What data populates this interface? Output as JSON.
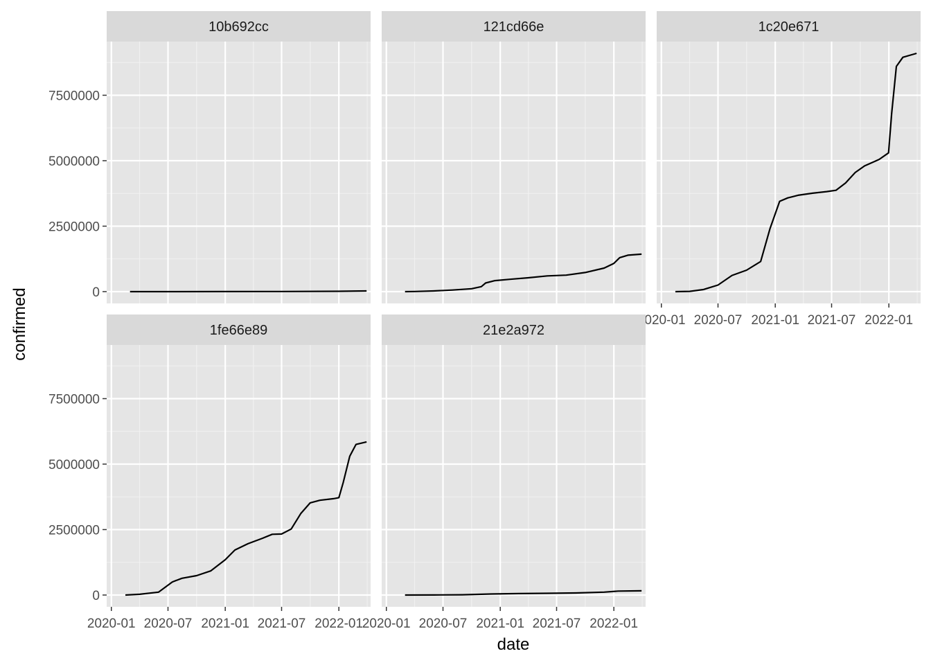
{
  "chart_data": {
    "type": "line",
    "xlabel": "date",
    "ylabel": "confirmed",
    "x_tick_labels": [
      "2020-01",
      "2020-07",
      "2021-01",
      "2021-07",
      "2022-01"
    ],
    "y_tick_labels": [
      "0",
      "2500000",
      "5000000",
      "7500000"
    ],
    "ylim": [
      -450000,
      9550000
    ],
    "xlim": [
      "2019-12-17",
      "2022-04-13"
    ],
    "grid": true,
    "line_color": "#000000",
    "panel_background": "#e5e5e5",
    "strip_background": "#d9d9d9",
    "panels": [
      {
        "name": "10b692cc",
        "series": [
          {
            "x": [
              "2020-03-01",
              "2020-07-01",
              "2021-01-01",
              "2021-07-01",
              "2022-01-01",
              "2022-03-31"
            ],
            "y": [
              0,
              1000,
              3000,
              6000,
              12000,
              25000
            ]
          }
        ]
      },
      {
        "name": "121cd66e",
        "series": [
          {
            "x": [
              "2020-03-01",
              "2020-04-01",
              "2020-06-01",
              "2020-08-01",
              "2020-10-01",
              "2020-11-01",
              "2020-11-15",
              "2020-12-15",
              "2021-02-01",
              "2021-04-01",
              "2021-06-01",
              "2021-08-01",
              "2021-10-01",
              "2021-12-01",
              "2022-01-01",
              "2022-01-20",
              "2022-02-15",
              "2022-03-31"
            ],
            "y": [
              0,
              5000,
              25000,
              60000,
              110000,
              190000,
              330000,
              420000,
              470000,
              530000,
              600000,
              630000,
              730000,
              900000,
              1080000,
              1300000,
              1390000,
              1430000
            ]
          }
        ]
      },
      {
        "name": "1c20e671",
        "series": [
          {
            "x": [
              "2020-02-15",
              "2020-04-01",
              "2020-05-15",
              "2020-07-01",
              "2020-08-15",
              "2020-10-01",
              "2020-11-15",
              "2020-12-15",
              "2021-01-15",
              "2021-02-10",
              "2021-03-15",
              "2021-05-01",
              "2021-06-15",
              "2021-07-15",
              "2021-08-15",
              "2021-09-15",
              "2021-10-15",
              "2021-12-01",
              "2021-12-31",
              "2022-01-10",
              "2022-01-25",
              "2022-02-15",
              "2022-03-31"
            ],
            "y": [
              0,
              10000,
              80000,
              250000,
              620000,
              820000,
              1150000,
              2400000,
              3450000,
              3580000,
              3680000,
              3760000,
              3820000,
              3870000,
              4150000,
              4550000,
              4800000,
              5050000,
              5300000,
              6800000,
              8600000,
              8950000,
              9100000
            ]
          }
        ]
      },
      {
        "name": "1fe66e89",
        "series": [
          {
            "x": [
              "2020-02-15",
              "2020-04-01",
              "2020-06-01",
              "2020-07-15",
              "2020-08-15",
              "2020-10-01",
              "2020-11-15",
              "2021-01-01",
              "2021-02-01",
              "2021-03-15",
              "2021-05-01",
              "2021-06-01",
              "2021-07-01",
              "2021-08-01",
              "2021-09-01",
              "2021-10-01",
              "2021-11-01",
              "2021-12-15",
              "2022-01-01",
              "2022-01-15",
              "2022-02-05",
              "2022-02-25",
              "2022-03-31"
            ],
            "y": [
              0,
              30000,
              110000,
              500000,
              640000,
              740000,
              920000,
              1350000,
              1720000,
              1960000,
              2170000,
              2320000,
              2330000,
              2520000,
              3120000,
              3520000,
              3620000,
              3680000,
              3720000,
              4300000,
              5300000,
              5750000,
              5850000
            ]
          }
        ]
      },
      {
        "name": "21e2a972",
        "series": [
          {
            "x": [
              "2020-03-01",
              "2020-06-01",
              "2020-09-01",
              "2020-12-01",
              "2021-03-01",
              "2021-06-01",
              "2021-09-01",
              "2021-12-01",
              "2022-01-15",
              "2022-03-31"
            ],
            "y": [
              0,
              2000,
              10000,
              40000,
              55000,
              65000,
              80000,
              110000,
              150000,
              160000
            ]
          }
        ]
      }
    ]
  }
}
